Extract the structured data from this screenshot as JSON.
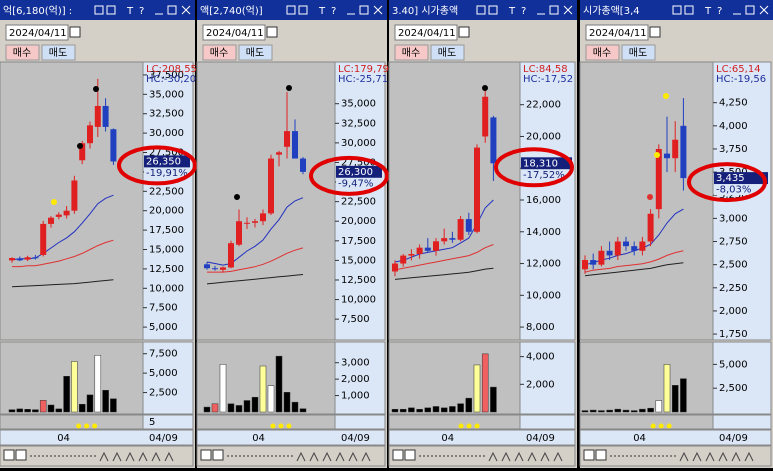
{
  "title_glyphs": [
    "T",
    "?"
  ],
  "up_color": "#e02020",
  "down_color": "#2040c0",
  "panels": [
    {
      "title": "억[6,180(억)] :",
      "date": "2024/04/11",
      "buy": "매수",
      "sell": "매도",
      "lc": "LC:208,55",
      "hc": "HC:-30,20",
      "price_label": "26,350",
      "change_label": "-19,91%",
      "ylim": [
        3337,
        38907
      ],
      "yticks": [
        {
          "value": 5000,
          "label": "5,000"
        },
        {
          "value": 7500,
          "label": "7,500"
        },
        {
          "value": 10000,
          "label": "10,000"
        },
        {
          "value": 12500,
          "label": "12,500"
        },
        {
          "value": 15000,
          "label": "15,000"
        },
        {
          "value": 17500,
          "label": "17,500"
        },
        {
          "value": 20000,
          "label": "20,000"
        },
        {
          "value": 22500,
          "label": "22,500"
        },
        {
          "value": 25000,
          "label": "25,000"
        },
        {
          "value": 27500,
          "label": "27,500"
        },
        {
          "value": 30000,
          "label": "30,000"
        },
        {
          "value": 32500,
          "label": "32,500"
        },
        {
          "value": 35000,
          "label": "35,000"
        },
        {
          "value": 37500,
          "label": "37,500"
        }
      ],
      "candles": [
        [
          13600,
          14000,
          13300,
          13900
        ],
        [
          13800,
          14100,
          13500,
          13600
        ],
        [
          13700,
          14200,
          13500,
          14000
        ],
        [
          14000,
          14300,
          13700,
          13900
        ],
        [
          14300,
          18700,
          14100,
          18300
        ],
        [
          18300,
          19300,
          17800,
          19100
        ],
        [
          19200,
          19800,
          18900,
          19500
        ],
        [
          19400,
          20600,
          19000,
          20000
        ],
        [
          20000,
          24500,
          19600,
          23900
        ],
        [
          26500,
          29000,
          26000,
          28700
        ],
        [
          28700,
          31500,
          28000,
          31000
        ],
        [
          30800,
          37000,
          29500,
          33500
        ],
        [
          33500,
          34500,
          30200,
          30800
        ],
        [
          30500,
          30600,
          25900,
          26350
        ]
      ],
      "ma": [
        {
          "color": "#2030c0",
          "values": [
            13700,
            13800,
            13800,
            13900,
            14500,
            15200,
            15900,
            16500,
            17300,
            18400,
            19600,
            20900,
            21600,
            22000
          ]
        },
        {
          "color": "#e03030",
          "values": [
            12800,
            12800,
            12900,
            12900,
            13100,
            13300,
            13500,
            13800,
            14100,
            14500,
            15000,
            15500,
            15900,
            16200
          ]
        },
        {
          "color": "#202020",
          "values": [
            10200,
            10250,
            10300,
            10350,
            10400,
            10450,
            10500,
            10550,
            10600,
            10700,
            10800,
            10900,
            11000,
            11100
          ]
        }
      ],
      "volume": {
        "ylim": [
          0,
          8750
        ],
        "yticks": [
          {
            "value": 2500,
            "label": "2,500"
          },
          {
            "value": 5000,
            "label": "5,000"
          },
          {
            "value": 7500,
            "label": "7,500"
          }
        ],
        "values": [
          300,
          400,
          350,
          300,
          1500,
          900,
          400,
          4600,
          6500,
          1000,
          2200,
          7300,
          2800,
          1700
        ],
        "colors": [
          "#000",
          "#000",
          "#000",
          "#000",
          "#f06060",
          "#000",
          "#000",
          "#000",
          "#ffff99",
          "#000",
          "#000",
          "#ffffff",
          "#000",
          "#000"
        ]
      },
      "sub_tick": 5,
      "x_labels": [
        "04",
        "04/09"
      ]
    },
    {
      "title": "액[2,740(억)]",
      "date": "2024/04/11",
      "buy": "매수",
      "sell": "매도",
      "lc": "LC:179,79",
      "hc": "HC:-25,71",
      "price_label": "26,300",
      "change_label": "-9,47%",
      "ylim": [
        4839,
        40068
      ],
      "yticks": [
        {
          "value": 7500,
          "label": "7,500"
        },
        {
          "value": 10000,
          "label": "10,000"
        },
        {
          "value": 12500,
          "label": "12,500"
        },
        {
          "value": 15000,
          "label": "15,000"
        },
        {
          "value": 17500,
          "label": "17,500"
        },
        {
          "value": 20000,
          "label": "20,000"
        },
        {
          "value": 22500,
          "label": "22,500"
        },
        {
          "value": 25000,
          "label": "25,000"
        },
        {
          "value": 27500,
          "label": "27,500"
        },
        {
          "value": 30000,
          "label": "30,000"
        },
        {
          "value": 32500,
          "label": "32,500"
        },
        {
          "value": 35000,
          "label": "35,000"
        }
      ],
      "candles": [
        [
          14500,
          14800,
          13800,
          14000
        ],
        [
          14000,
          14300,
          13700,
          13900
        ],
        [
          13800,
          14200,
          13500,
          14100
        ],
        [
          14100,
          17500,
          14000,
          17200
        ],
        [
          17000,
          21500,
          16800,
          20000
        ],
        [
          19800,
          20500,
          19000,
          19800
        ],
        [
          19800,
          20300,
          19200,
          20000
        ],
        [
          20000,
          21500,
          19500,
          21000
        ],
        [
          21000,
          28500,
          20800,
          28000
        ],
        [
          28500,
          29000,
          27000,
          28800
        ],
        [
          29500,
          36500,
          28000,
          31500
        ],
        [
          31500,
          33000,
          28000,
          28000
        ],
        [
          28000,
          28200,
          26000,
          26300
        ]
      ],
      "ma": [
        {
          "color": "#2030c0",
          "values": [
            14800,
            14600,
            14400,
            14600,
            15400,
            16200,
            16800,
            17600,
            19000,
            20200,
            21800,
            22600,
            23000
          ]
        },
        {
          "color": "#e03030",
          "values": [
            13500,
            13500,
            13500,
            13600,
            13800,
            14000,
            14200,
            14500,
            14900,
            15400,
            15900,
            16300,
            16600
          ]
        },
        {
          "color": "#202020",
          "values": [
            12000,
            12100,
            12200,
            12300,
            12400,
            12500,
            12600,
            12700,
            12800,
            12900,
            13000,
            13100,
            13200
          ]
        }
      ],
      "volume": {
        "ylim": [
          0,
          4140
        ],
        "yticks": [
          {
            "value": 1000,
            "label": "1,000"
          },
          {
            "value": 2000,
            "label": "2,000"
          },
          {
            "value": 3000,
            "label": "3,000"
          }
        ],
        "values": [
          300,
          500,
          2900,
          500,
          400,
          700,
          900,
          2800,
          1600,
          3400,
          1200,
          600,
          200
        ],
        "colors": [
          "#000",
          "#f06060",
          "#ffffff",
          "#000",
          "#000",
          "#000",
          "#000",
          "#ffff99",
          "#ffffff",
          "#000",
          "#000",
          "#000",
          "#000"
        ]
      },
      "x_labels": [
        "04",
        "04/09"
      ]
    },
    {
      "title": "3.40] 시가총액",
      "date": "2024/04/11",
      "buy": "매수",
      "sell": "매도",
      "lc": "LC:84,58",
      "hc": "HC:-17,52",
      "price_label": "18,310",
      "change_label": "-17,52%",
      "ylim": [
        7187,
        24562
      ],
      "yticks": [
        {
          "value": 8000,
          "label": "8,000"
        },
        {
          "value": 10000,
          "label": "10,000"
        },
        {
          "value": 12000,
          "label": "12,000"
        },
        {
          "value": 14000,
          "label": "14,000"
        },
        {
          "value": 16000,
          "label": "16,000"
        },
        {
          "value": 18000,
          "label": "18,000"
        },
        {
          "value": 20000,
          "label": "20,000"
        },
        {
          "value": 22000,
          "label": "22,000"
        }
      ],
      "candles": [
        [
          11500,
          12200,
          11200,
          12000
        ],
        [
          12000,
          12600,
          11800,
          12500
        ],
        [
          12500,
          12900,
          12200,
          12600
        ],
        [
          12600,
          13200,
          12300,
          13000
        ],
        [
          13000,
          13600,
          12700,
          12800
        ],
        [
          12800,
          13600,
          12500,
          13400
        ],
        [
          13400,
          14200,
          13200,
          13600
        ],
        [
          13600,
          14000,
          13300,
          13500
        ],
        [
          13500,
          15000,
          13400,
          14800
        ],
        [
          14800,
          15200,
          13800,
          14000
        ],
        [
          14000,
          19500,
          13900,
          19300
        ],
        [
          20000,
          23000,
          19600,
          22500
        ],
        [
          21200,
          21300,
          17200,
          18310
        ]
      ],
      "ma": [
        {
          "color": "#2030c0",
          "values": [
            12100,
            12200,
            12400,
            12600,
            12700,
            12800,
            12900,
            13000,
            13300,
            13600,
            14500,
            15500,
            16000
          ]
        },
        {
          "color": "#e03030",
          "values": [
            11600,
            11700,
            11800,
            11900,
            12000,
            12100,
            12200,
            12300,
            12400,
            12500,
            12700,
            13000,
            13200
          ]
        },
        {
          "color": "#202020",
          "values": [
            11000,
            11050,
            11100,
            11150,
            11200,
            11250,
            11300,
            11350,
            11400,
            11450,
            11550,
            11650,
            11700
          ]
        }
      ],
      "volume": {
        "ylim": [
          0,
          4912
        ],
        "yticks": [
          {
            "value": 2000,
            "label": "2,000"
          },
          {
            "value": 4000,
            "label": "4,000"
          }
        ],
        "values": [
          200,
          200,
          300,
          200,
          300,
          400,
          300,
          400,
          600,
          1000,
          3400,
          4200,
          1800
        ],
        "colors": [
          "#000",
          "#000",
          "#000",
          "#000",
          "#000",
          "#000",
          "#000",
          "#000",
          "#000",
          "#000",
          "#ffff99",
          "#f06060",
          "#000"
        ]
      },
      "x_labels": [
        "04",
        "04/09"
      ]
    },
    {
      "title": "시가총액[3,4",
      "date": "2024/04/11",
      "buy": "매수",
      "sell": "매도",
      "lc": "LC:65,14",
      "hc": "HC:-19,56",
      "price_label": "3,435",
      "change_label": "-8,03%",
      "ylim": [
        1686,
        4668
      ],
      "yticks": [
        {
          "value": 1750,
          "label": "1,750"
        },
        {
          "value": 2000,
          "label": "2,000"
        },
        {
          "value": 2250,
          "label": "2,250"
        },
        {
          "value": 2500,
          "label": "2,500"
        },
        {
          "value": 2750,
          "label": "2,750"
        },
        {
          "value": 3000,
          "label": "3,000"
        },
        {
          "value": 3250,
          "label": "3,250"
        },
        {
          "value": 3500,
          "label": "3,500"
        },
        {
          "value": 3750,
          "label": "3,750"
        },
        {
          "value": 4000,
          "label": "4,000"
        },
        {
          "value": 4250,
          "label": "4,250"
        }
      ],
      "candles": [
        [
          2450,
          2600,
          2400,
          2550
        ],
        [
          2550,
          2620,
          2450,
          2500
        ],
        [
          2500,
          2700,
          2480,
          2650
        ],
        [
          2650,
          2750,
          2550,
          2600
        ],
        [
          2600,
          2800,
          2550,
          2750
        ],
        [
          2750,
          2800,
          2650,
          2700
        ],
        [
          2700,
          2750,
          2600,
          2650
        ],
        [
          2650,
          2800,
          2600,
          2750
        ],
        [
          2750,
          3100,
          2700,
          3050
        ],
        [
          3100,
          3800,
          3000,
          3750
        ],
        [
          3700,
          4100,
          3500,
          3650
        ],
        [
          3650,
          4050,
          3500,
          3850
        ],
        [
          4000,
          4300,
          3300,
          3435
        ]
      ],
      "ma": [
        {
          "color": "#2030c0",
          "values": [
            2500,
            2520,
            2550,
            2570,
            2600,
            2620,
            2650,
            2680,
            2720,
            2820,
            2950,
            3050,
            3100
          ]
        },
        {
          "color": "#e03030",
          "values": [
            2420,
            2440,
            2450,
            2460,
            2480,
            2490,
            2500,
            2510,
            2530,
            2560,
            2600,
            2630,
            2650
          ]
        },
        {
          "color": "#202020",
          "values": [
            2380,
            2390,
            2400,
            2410,
            2420,
            2430,
            2440,
            2450,
            2460,
            2480,
            2500,
            2510,
            2520
          ]
        }
      ],
      "volume": {
        "ylim": [
          0,
          7140
        ],
        "yticks": [
          {
            "value": 2500,
            "label": "2,500"
          },
          {
            "value": 5000,
            "label": "5,000"
          }
        ],
        "values": [
          150,
          200,
          150,
          200,
          300,
          200,
          150,
          300,
          400,
          1200,
          5000,
          2800,
          3500
        ],
        "colors": [
          "#000",
          "#000",
          "#000",
          "#000",
          "#000",
          "#000",
          "#000",
          "#000",
          "#000",
          "#ffffff",
          "#ffff99",
          "#000",
          "#000"
        ]
      },
      "x_labels": [
        "04",
        "04/09"
      ]
    }
  ]
}
